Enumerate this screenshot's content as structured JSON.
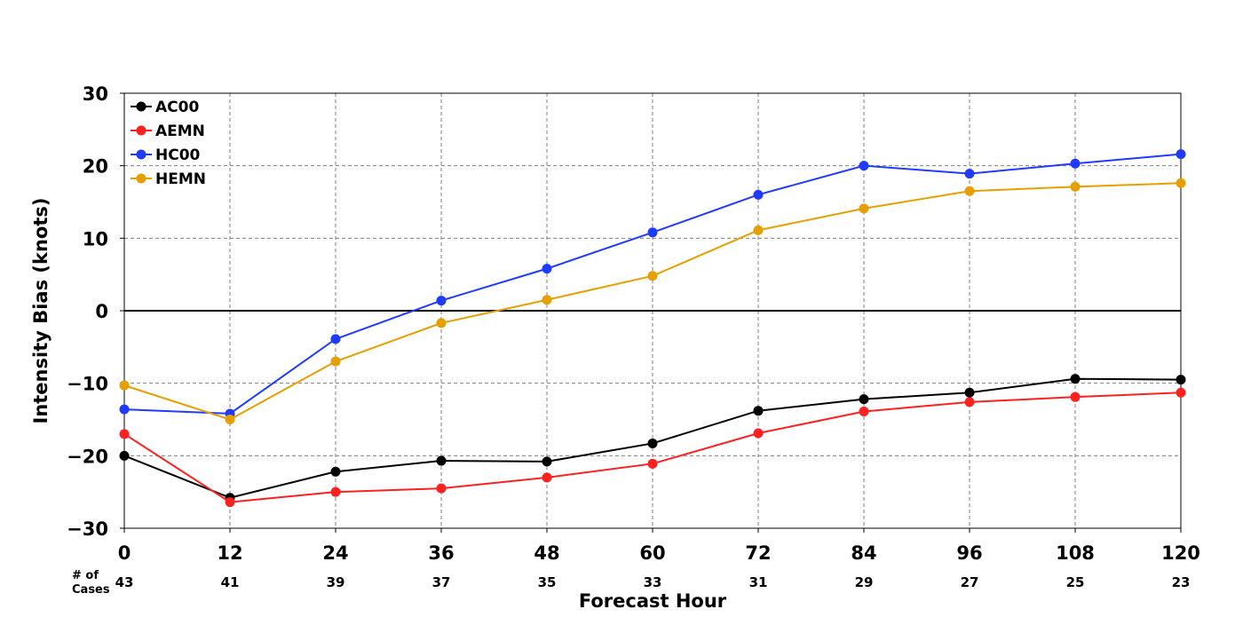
{
  "chart_data": {
    "type": "line",
    "title": "",
    "xlabel": "Forecast Hour",
    "ylabel": "Intensity Bias (knots)",
    "x": [
      0,
      12,
      24,
      36,
      48,
      60,
      72,
      84,
      96,
      108,
      120
    ],
    "x_tick_labels": [
      "0",
      "12",
      "24",
      "36",
      "48",
      "60",
      "72",
      "84",
      "96",
      "108",
      "120"
    ],
    "xlim": [
      0,
      120
    ],
    "ylim": [
      -30,
      30
    ],
    "y_ticks": [
      -30,
      -20,
      -10,
      0,
      10,
      20,
      30
    ],
    "y_tick_labels": [
      "−30",
      "−20",
      "−10",
      "0",
      "10",
      "20",
      "30"
    ],
    "grid": true,
    "zero_line": true,
    "legend_position": "top-left",
    "cases_label": "# of\nCases",
    "cases": [
      "43",
      "41",
      "39",
      "37",
      "35",
      "33",
      "31",
      "29",
      "27",
      "25",
      "23"
    ],
    "series": [
      {
        "name": "AC00",
        "color": "#000000",
        "values": [
          -20.0,
          -25.8,
          -22.2,
          -20.7,
          -20.8,
          -18.3,
          -13.8,
          -12.2,
          -11.3,
          -9.4,
          -9.5
        ]
      },
      {
        "name": "AEMN",
        "color": "#ff2020",
        "values": [
          -17.0,
          -26.4,
          -25.0,
          -24.5,
          -23.0,
          -21.1,
          -16.9,
          -13.9,
          -12.6,
          -11.9,
          -11.3
        ]
      },
      {
        "name": "HC00",
        "color": "#1f3bff",
        "values": [
          -13.6,
          -14.2,
          -3.9,
          1.4,
          5.8,
          10.8,
          16.0,
          20.0,
          18.9,
          20.3,
          21.6
        ]
      },
      {
        "name": "HEMN",
        "color": "#e69f00",
        "values": [
          -10.3,
          -15.0,
          -7.0,
          -1.7,
          1.5,
          4.8,
          11.1,
          14.1,
          16.5,
          17.1,
          17.6
        ]
      }
    ]
  }
}
